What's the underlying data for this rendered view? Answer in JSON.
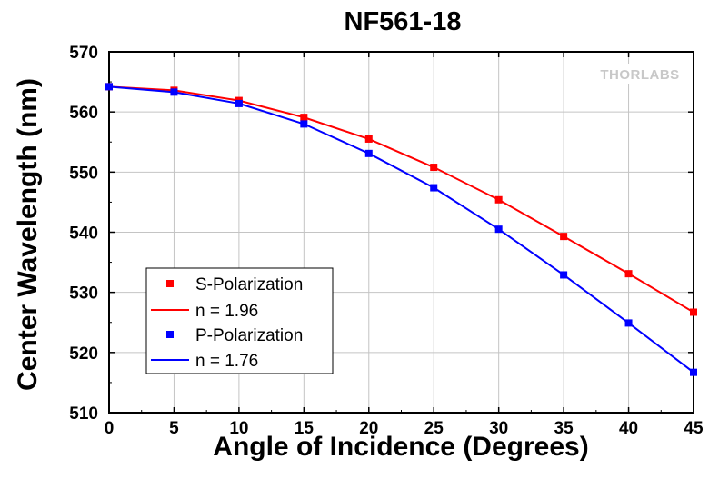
{
  "chart_data": {
    "type": "line",
    "title": "NF561-18",
    "xlabel": "Angle of Incidence (Degrees)",
    "ylabel": "Center Wavelength (nm)",
    "xlim": [
      0,
      45
    ],
    "ylim": [
      510,
      570
    ],
    "xticks": [
      "0",
      "5",
      "10",
      "15",
      "20",
      "25",
      "30",
      "35",
      "40",
      "45"
    ],
    "yticks": [
      "510",
      "520",
      "530",
      "540",
      "550",
      "560",
      "570"
    ],
    "grid": true,
    "legend_position": "lower-left",
    "watermark": "THORLABS",
    "x": [
      0,
      5,
      10,
      15,
      20,
      25,
      30,
      35,
      40,
      45
    ],
    "series": [
      {
        "name": "S-Polarization",
        "style": "markers",
        "color": "#ff0000",
        "values": [
          564.2,
          563.6,
          561.9,
          559.1,
          555.5,
          550.8,
          545.4,
          539.3,
          533.1,
          526.7
        ]
      },
      {
        "name": "n = 1.96",
        "style": "line",
        "color": "#ff0000",
        "values": [
          564.2,
          563.6,
          561.9,
          559.1,
          555.5,
          550.8,
          545.4,
          539.3,
          533.1,
          526.7
        ]
      },
      {
        "name": "P-Polarization",
        "style": "markers",
        "color": "#0000ff",
        "values": [
          564.2,
          563.3,
          561.4,
          558.0,
          553.1,
          547.4,
          540.5,
          532.9,
          524.9,
          516.7
        ]
      },
      {
        "name": "n = 1.76",
        "style": "line",
        "color": "#0000ff",
        "values": [
          564.2,
          563.3,
          561.4,
          558.0,
          553.1,
          547.4,
          540.5,
          532.9,
          524.9,
          516.7
        ]
      }
    ]
  }
}
